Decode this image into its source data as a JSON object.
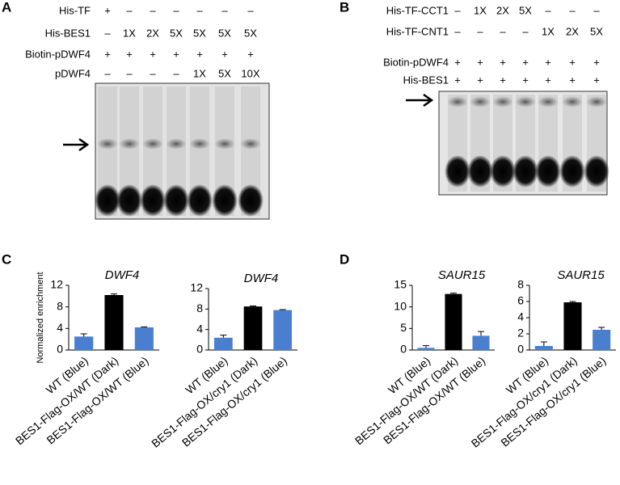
{
  "panel_labels": [
    "A",
    "B",
    "C",
    "D"
  ],
  "gels": [
    {
      "rows": [
        {
          "label": "His-TF",
          "lanes": [
            "+",
            "–",
            "–",
            "–",
            "–",
            "–",
            "–"
          ]
        },
        {
          "label": "His-BES1",
          "lanes": [
            "–",
            "1X",
            "2X",
            "5X",
            "5X",
            "5X",
            "5X"
          ]
        },
        {
          "label": "Biotin-pDWF4",
          "lanes": [
            "+",
            "+",
            "+",
            "+",
            "+",
            "+",
            "+"
          ]
        },
        {
          "label": "pDWF4",
          "lanes": [
            "–",
            "–",
            "–",
            "–",
            "1X",
            "5X",
            "10X"
          ]
        }
      ]
    },
    {
      "rows": [
        {
          "label": "His-TF-CCT1",
          "lanes": [
            "–",
            "1X",
            "2X",
            "5X",
            "–",
            "–",
            "–"
          ]
        },
        {
          "label": "His-TF-CNT1",
          "lanes": [
            "–",
            "–",
            "–",
            "–",
            "1X",
            "2X",
            "5X"
          ]
        },
        {
          "label": "Biotin-pDWF4",
          "lanes": [
            "+",
            "+",
            "+",
            "+",
            "+",
            "+",
            "+"
          ]
        },
        {
          "label": "His-BES1",
          "lanes": [
            "+",
            "+",
            "+",
            "+",
            "+",
            "+",
            "+"
          ]
        }
      ]
    }
  ],
  "chart_data": [
    {
      "type": "bar",
      "title": "DWF4",
      "ylabel": "Normalized enrichment",
      "categories": [
        "WT (Blue)",
        "BES1-Flag-OX/WT (Dark)",
        "BES1-Flag-OX/WT (Blue)"
      ],
      "values": [
        2.5,
        10.2,
        4.2
      ],
      "errors": [
        0.5,
        0.2,
        0.1
      ],
      "colors": [
        "#4a7fd0",
        "#000000",
        "#4a7fd0"
      ],
      "ylim": [
        0,
        12
      ],
      "yticks": [
        0,
        4,
        8,
        12
      ]
    },
    {
      "type": "bar",
      "title": "DWF4",
      "categories": [
        "WT (Blue)",
        "BES1-Flag-OX/cry1 (Dark)",
        "BES1-Flag-OX/cry1 (Blue)"
      ],
      "values": [
        2.4,
        8.5,
        7.8
      ],
      "errors": [
        0.5,
        0.1,
        0.1
      ],
      "colors": [
        "#4a7fd0",
        "#000000",
        "#4a7fd0"
      ],
      "ylim": [
        0,
        12
      ],
      "yticks": [
        0,
        4,
        8,
        12
      ]
    },
    {
      "type": "bar",
      "title": "SAUR15",
      "categories": [
        "WT (Blue)",
        "BES1-Flag-OX/WT (Dark)",
        "BES1-Flag-OX/WT (Blue)"
      ],
      "values": [
        0.5,
        13,
        3.3
      ],
      "errors": [
        0.5,
        0.2,
        1.0
      ],
      "colors": [
        "#4a7fd0",
        "#000000",
        "#4a7fd0"
      ],
      "ylim": [
        0,
        15
      ],
      "yticks": [
        0,
        5,
        10,
        15
      ]
    },
    {
      "type": "bar",
      "title": "SAUR15",
      "categories": [
        "WT (Blue)",
        "BES1-Flag-OX/cry1 (Dark)",
        "BES1-Flag-OX/cry1 (Blue)"
      ],
      "values": [
        0.5,
        5.9,
        2.5
      ],
      "errors": [
        0.5,
        0.1,
        0.3
      ],
      "colors": [
        "#4a7fd0",
        "#000000",
        "#4a7fd0"
      ],
      "ylim": [
        0,
        8
      ],
      "yticks": [
        0,
        2,
        4,
        6,
        8
      ]
    }
  ]
}
